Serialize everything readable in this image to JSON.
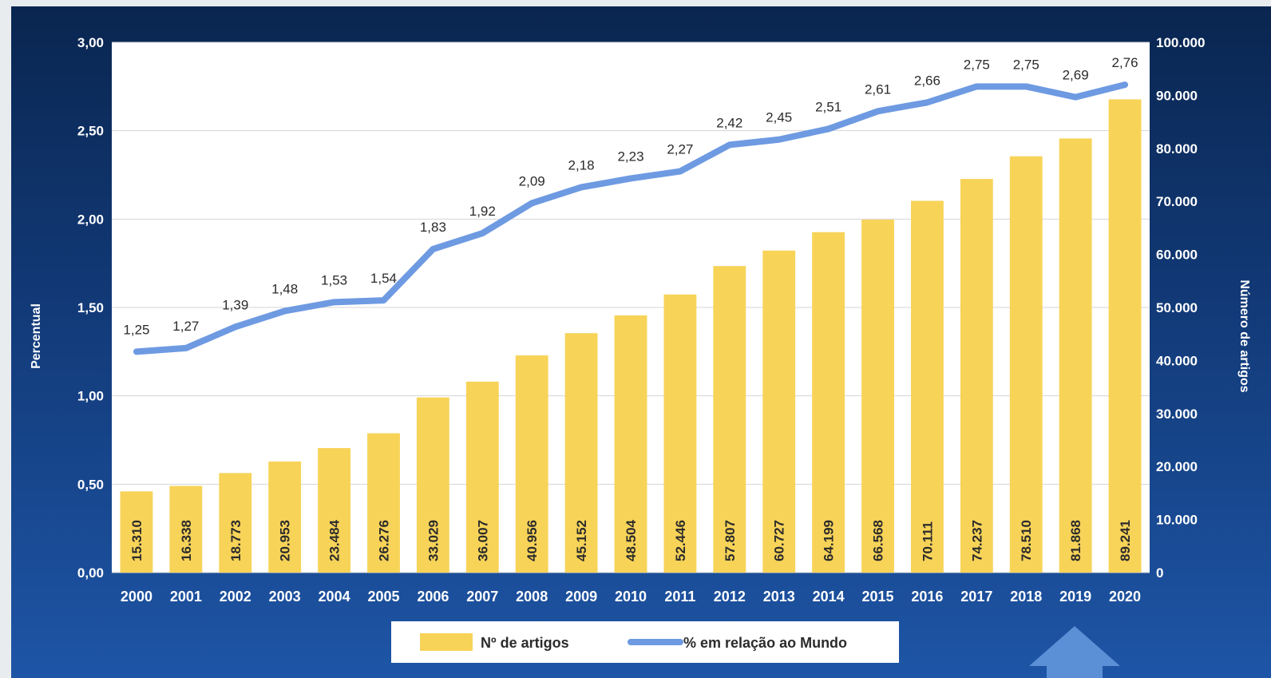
{
  "chart_data": {
    "type": "bar",
    "categories": [
      "2000",
      "2001",
      "2002",
      "2003",
      "2004",
      "2005",
      "2006",
      "2007",
      "2008",
      "2009",
      "2010",
      "2011",
      "2012",
      "2013",
      "2014",
      "2015",
      "2016",
      "2017",
      "2018",
      "2019",
      "2020"
    ],
    "series": [
      {
        "name": "Nº de artigos",
        "type": "bar",
        "axis": "right",
        "color": "#f7d358",
        "values": [
          15310,
          16338,
          18773,
          20953,
          23484,
          26276,
          33029,
          36007,
          40956,
          45152,
          48504,
          52446,
          57807,
          60727,
          64199,
          66568,
          70111,
          74237,
          78510,
          81868,
          89241
        ],
        "labels": [
          "15.310",
          "16.338",
          "18.773",
          "20.953",
          "23.484",
          "26.276",
          "33.029",
          "36.007",
          "40.956",
          "45.152",
          "48.504",
          "52.446",
          "57.807",
          "60.727",
          "64.199",
          "66.568",
          "70.111",
          "74.237",
          "78.510",
          "81.868",
          "89.241"
        ]
      },
      {
        "name": "% em relação ao Mundo",
        "type": "line",
        "axis": "left",
        "color": "#6e9ae2",
        "values": [
          1.25,
          1.27,
          1.39,
          1.48,
          1.53,
          1.54,
          1.83,
          1.92,
          2.09,
          2.18,
          2.23,
          2.27,
          2.42,
          2.45,
          2.51,
          2.61,
          2.66,
          2.75,
          2.75,
          2.69,
          2.76
        ],
        "labels": [
          "1,25",
          "1,27",
          "1,39",
          "1,48",
          "1,53",
          "1,54",
          "1,83",
          "1,92",
          "2,09",
          "2,18",
          "2,23",
          "2,27",
          "2,42",
          "2,45",
          "2,51",
          "2,61",
          "2,66",
          "2,75",
          "2,75",
          "2,69",
          "2,76"
        ]
      }
    ],
    "y_left": {
      "label": "Percentual",
      "range": [
        0,
        3
      ],
      "ticks": [
        "0,00",
        "0,50",
        "1,00",
        "1,50",
        "2,00",
        "2,50",
        "3,00"
      ]
    },
    "y_right": {
      "label": "Número de artigos",
      "range": [
        0,
        100000
      ],
      "ticks": [
        "0",
        "10.000",
        "20.000",
        "30.000",
        "40.000",
        "50.000",
        "60.000",
        "70.000",
        "80.000",
        "90.000",
        "100.000"
      ]
    },
    "grid": true,
    "legend_position": "bottom"
  },
  "colors": {
    "background": "#123a78",
    "plot_area": "#ffffff",
    "arrow": "#5b8fd6"
  },
  "decor": {
    "arrow_icon": "up-arrow-icon"
  }
}
